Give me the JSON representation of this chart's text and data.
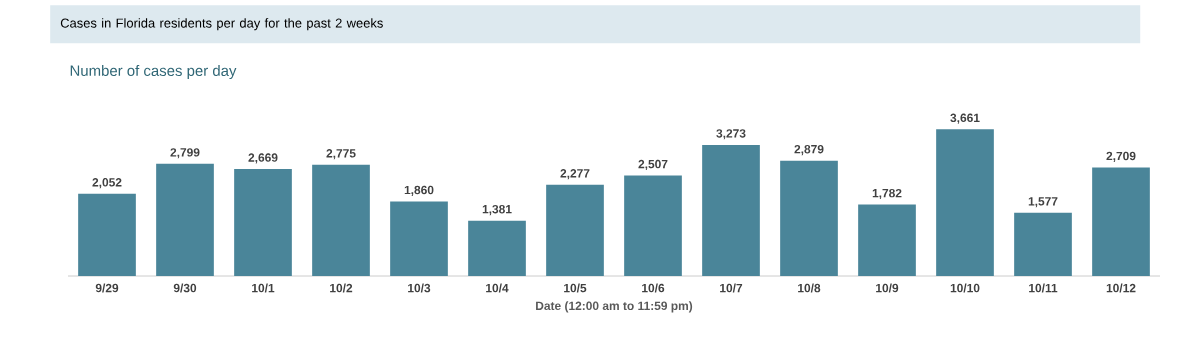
{
  "chart_data": {
    "type": "bar",
    "title": "Cases in Florida residents per day for the past 2 weeks",
    "subtitle": "Number of cases per day",
    "xlabel": "Date (12:00 am to 11:59 pm)",
    "categories": [
      "9/29",
      "9/30",
      "10/1",
      "10/2",
      "10/3",
      "10/4",
      "10/5",
      "10/6",
      "10/7",
      "10/8",
      "10/9",
      "10/10",
      "10/11",
      "10/12"
    ],
    "values": [
      2052,
      2799,
      2669,
      2775,
      1860,
      1381,
      2277,
      2507,
      3273,
      2879,
      1782,
      3661,
      1577,
      2709
    ],
    "value_labels": [
      "2,052",
      "2,799",
      "2,669",
      "2,775",
      "1,860",
      "1,381",
      "2,277",
      "2,507",
      "3,273",
      "2,879",
      "1,782",
      "3,661",
      "1,577",
      "2,709"
    ],
    "color": "#4a8599"
  }
}
